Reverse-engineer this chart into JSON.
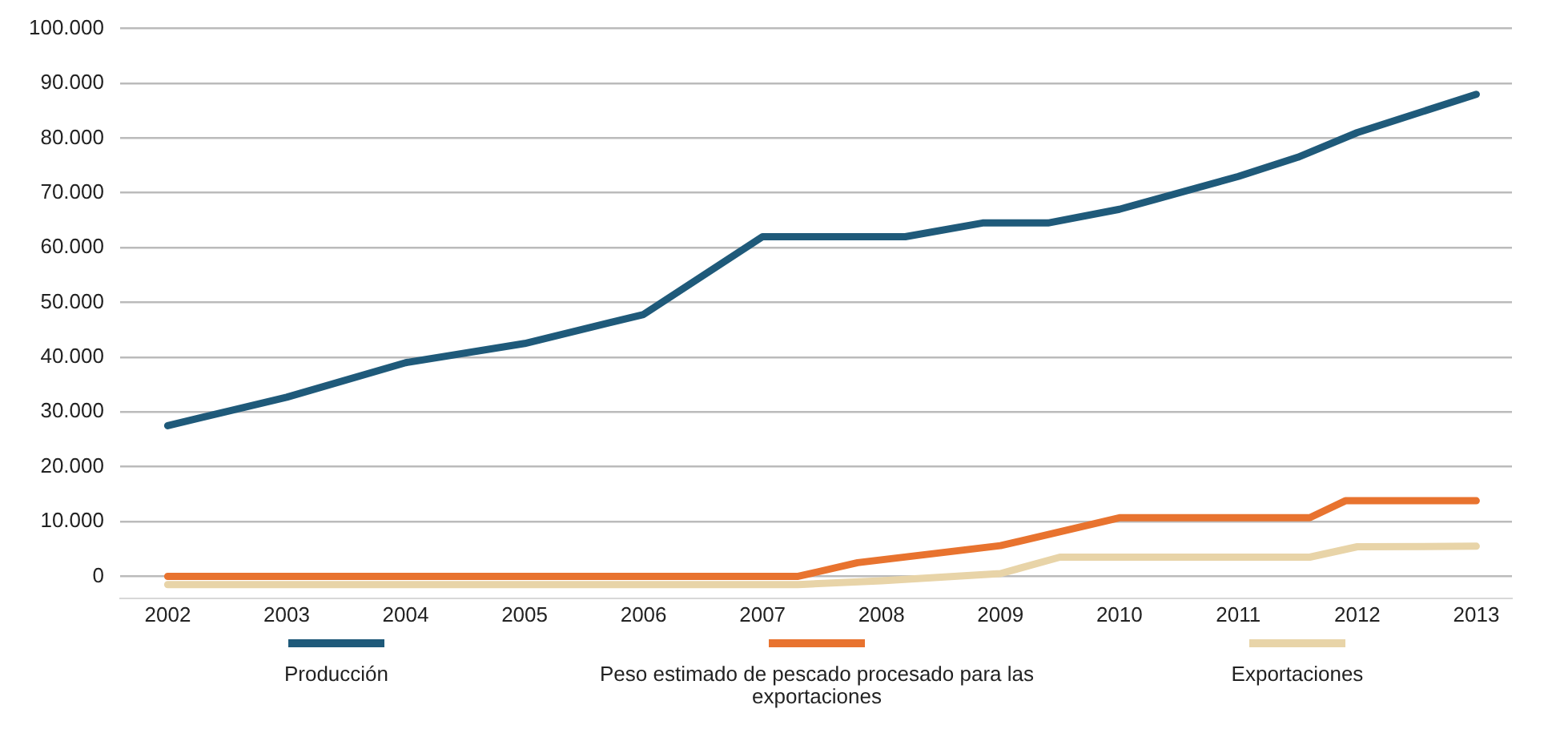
{
  "chart_data": {
    "type": "line",
    "xlim": [
      2001.6,
      2013.3
    ],
    "xticks": [
      2002,
      2003,
      2004,
      2005,
      2006,
      2007,
      2008,
      2009,
      2010,
      2011,
      2012,
      2013
    ],
    "ylim": [
      -4000,
      100000
    ],
    "yticks": [
      {
        "value": 0,
        "label": "0"
      },
      {
        "value": 10000,
        "label": "10.000"
      },
      {
        "value": 20000,
        "label": "20.000"
      },
      {
        "value": 30000,
        "label": "30.000"
      },
      {
        "value": 40000,
        "label": "40.000"
      },
      {
        "value": 50000,
        "label": "50.000"
      },
      {
        "value": 60000,
        "label": "60.000"
      },
      {
        "value": 70000,
        "label": "70.000"
      },
      {
        "value": 80000,
        "label": "80.000"
      },
      {
        "value": 90000,
        "label": "90.000"
      },
      {
        "value": 100000,
        "label": "100.000"
      }
    ],
    "grid": "y",
    "legend": "bottom",
    "marker": "none",
    "line_style": "solid",
    "series": [
      {
        "name": "Producción",
        "color": "#1f5a7a",
        "x": [
          2002,
          2003,
          2004,
          2005,
          2006,
          2007,
          2008.2,
          2008.85,
          2009.4,
          2010,
          2011,
          2011.5,
          2012,
          2013
        ],
        "values": [
          27500,
          32700,
          39000,
          42500,
          47800,
          62000,
          62000,
          64500,
          64500,
          67000,
          73000,
          76500,
          81000,
          88000
        ]
      },
      {
        "name": "Peso estimado de pescado procesado para las exportaciones",
        "color": "#e8732f",
        "x": [
          2002,
          2007.3,
          2007.8,
          2009,
          2010,
          2011.6,
          2011.9,
          2013
        ],
        "values": [
          0,
          0,
          2500,
          5600,
          10700,
          10700,
          13800,
          13800
        ]
      },
      {
        "name": "Exportaciones",
        "color": "#e8d4a8",
        "x": [
          2002,
          2007.3,
          2008,
          2009,
          2009.5,
          2011.6,
          2012,
          2013
        ],
        "values": [
          -1500,
          -1500,
          -800,
          500,
          3500,
          3500,
          5400,
          5500
        ]
      }
    ]
  }
}
